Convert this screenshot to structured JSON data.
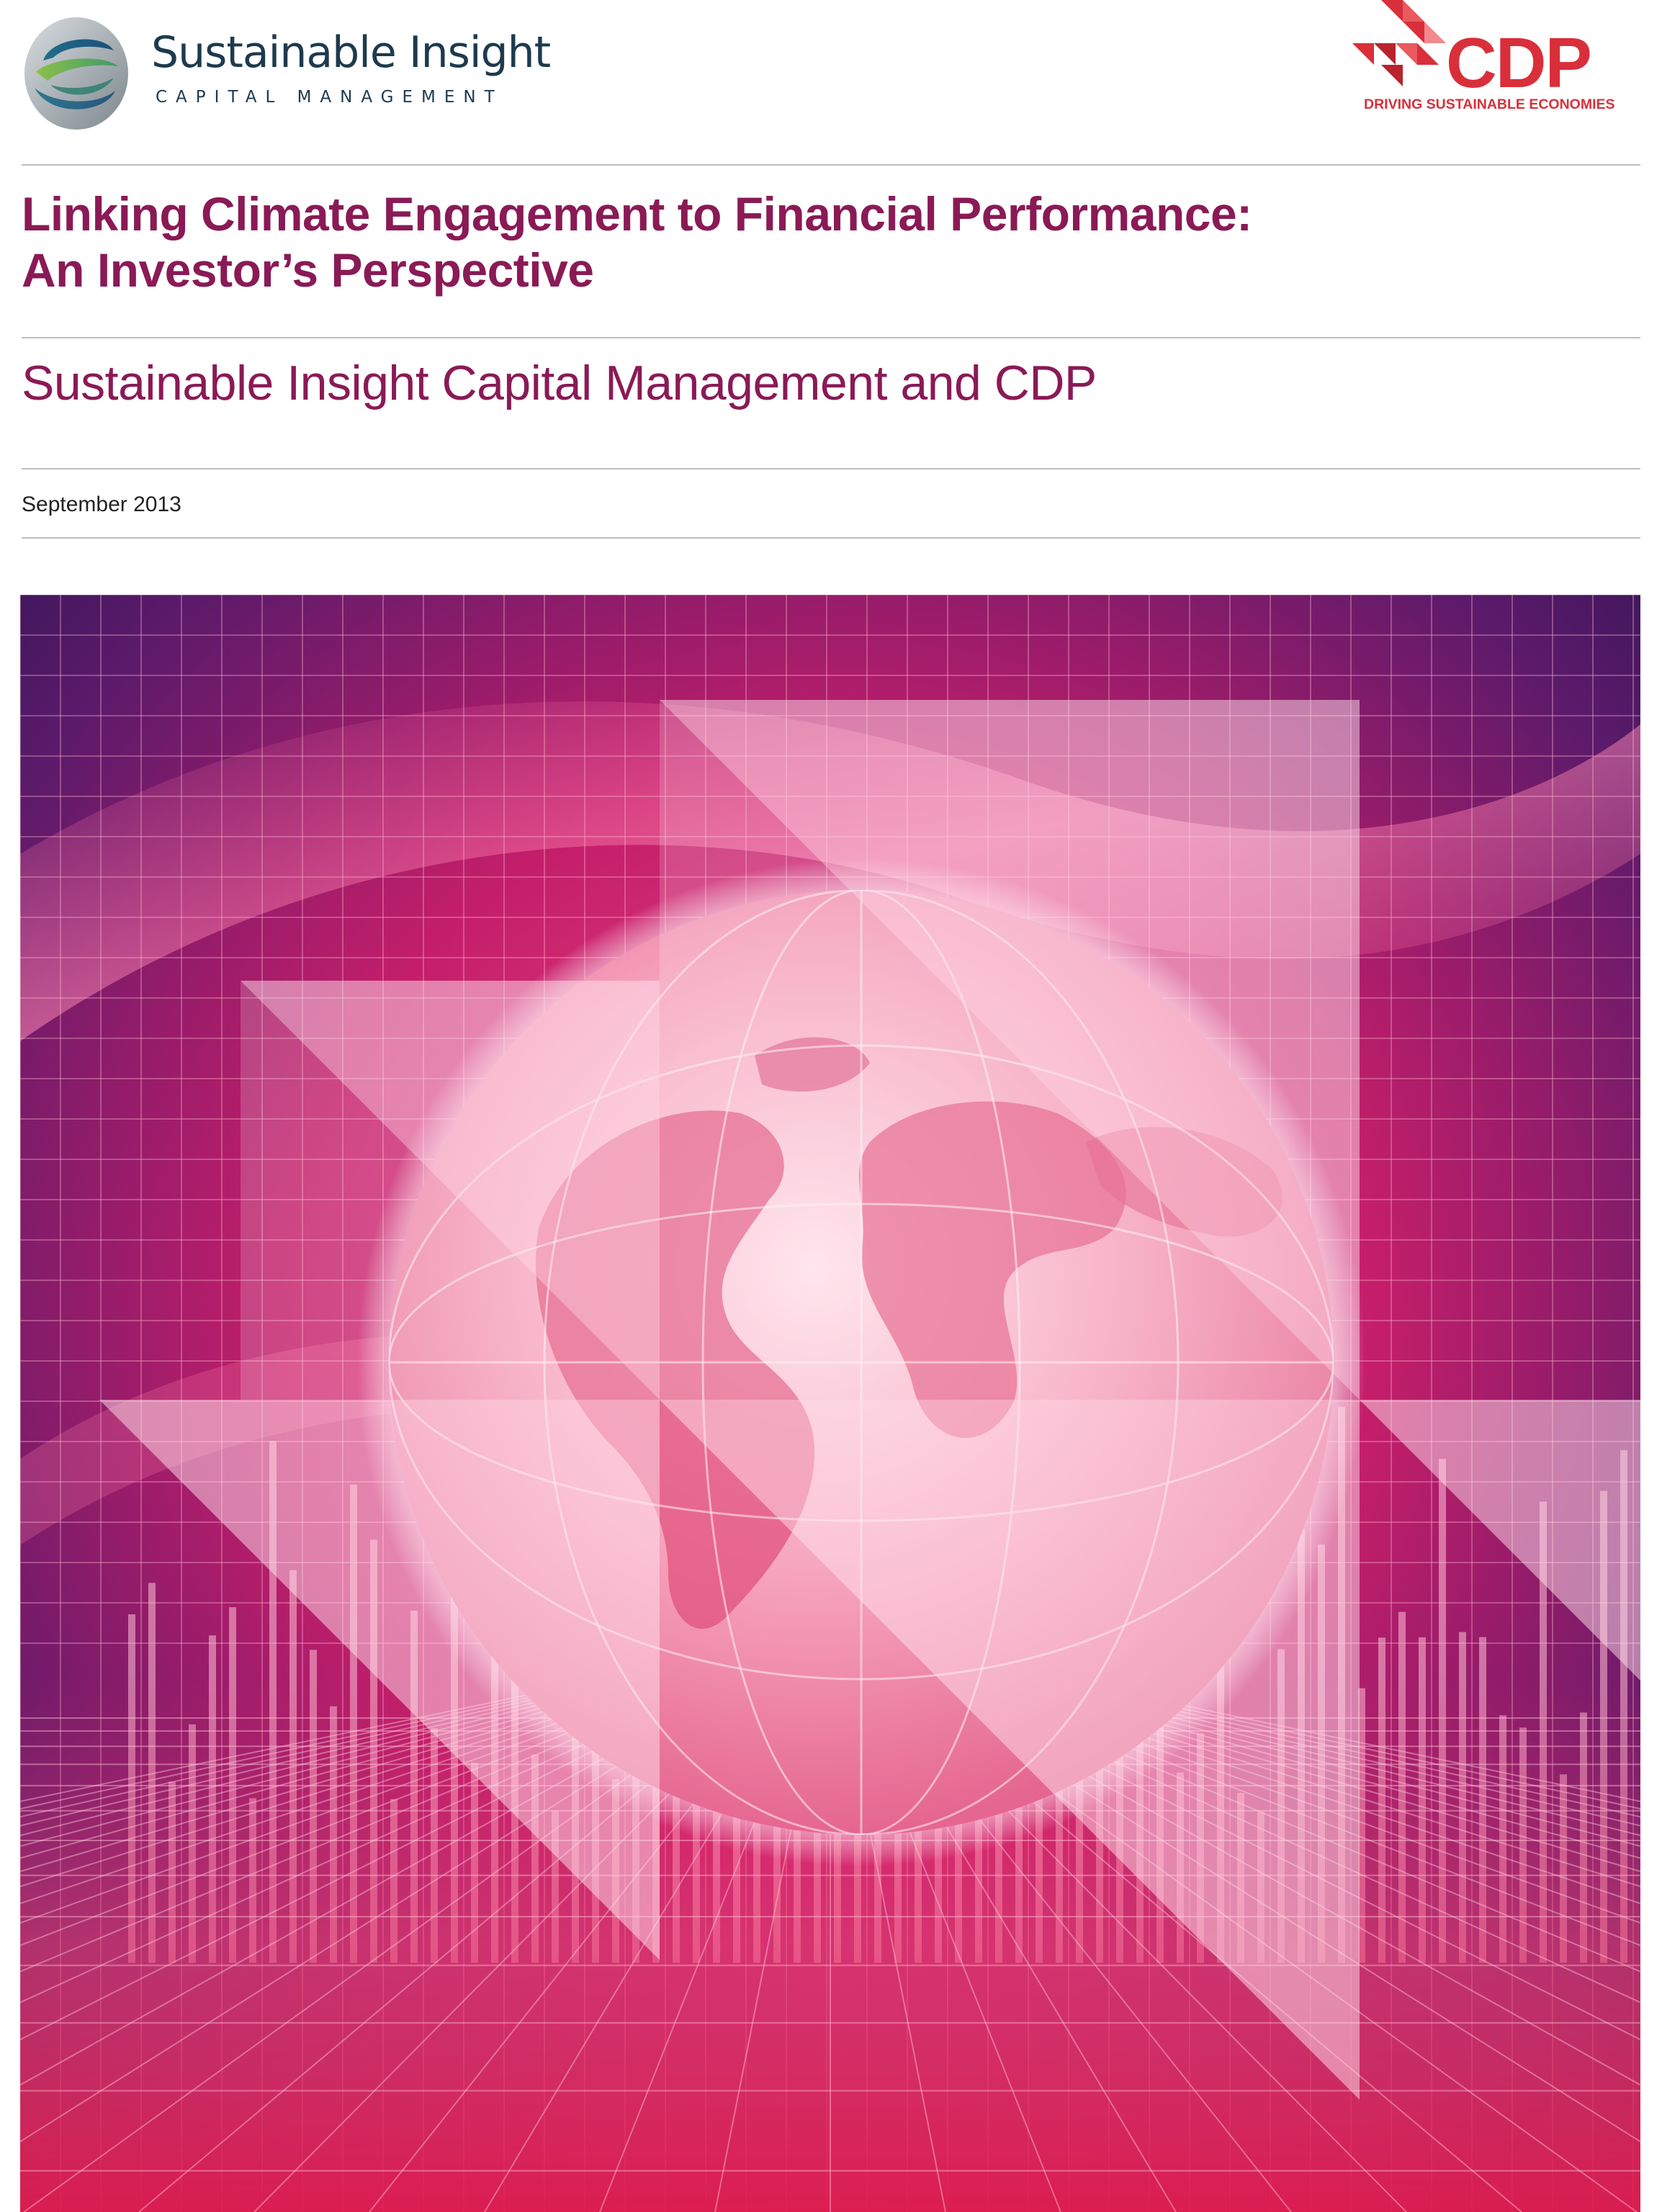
{
  "header": {
    "left_logo": {
      "name": "Sustainable Insight",
      "subtitle": "CAPITAL MANAGEMENT",
      "colors": {
        "dark": "#1d3a4e",
        "teal": "#2a8f8a",
        "green": "#7cb342",
        "grey": "#9aa3a8"
      }
    },
    "right_logo": {
      "name": "CDP",
      "tagline": "DRIVING SUSTAINABLE ECONOMIES",
      "color": "#d92f3a"
    }
  },
  "document": {
    "title_line1": "Linking Climate Engagement to Financial Performance:",
    "title_line2": "An Investor’s Perspective",
    "authors": "Sustainable Insight Capital Management and CDP",
    "date": "September 2013",
    "accent_color": "#8a1a56"
  },
  "cover_art": {
    "subject": "globe-over-financial-bar-chart",
    "palette": [
      "#2a1450",
      "#7a1a6a",
      "#e0306a",
      "#f5a3b8",
      "#ffffff"
    ]
  }
}
